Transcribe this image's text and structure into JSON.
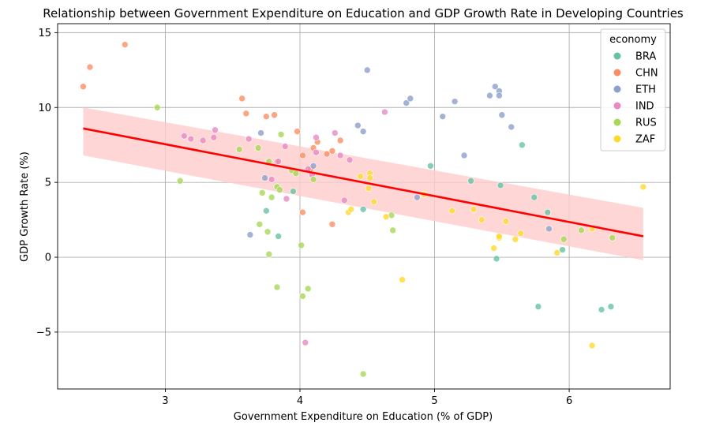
{
  "chart_data": {
    "type": "scatter",
    "title": "Relationship between Government Expenditure on Education and GDP Growth Rate in Developing Countries",
    "xlabel": "Government Expenditure on Education (% of GDP)",
    "ylabel": "GDP Growth Rate (%)",
    "xlim": [
      2.2,
      6.75
    ],
    "ylim": [
      -8.8,
      15.6
    ],
    "xticks": [
      3,
      4,
      5,
      6
    ],
    "yticks": [
      -5,
      0,
      5,
      10,
      15
    ],
    "grid": true,
    "legend": {
      "title": "economy",
      "position": "top-right"
    },
    "series": [
      {
        "name": "BRA",
        "color": "#66c2a5",
        "points": [
          [
            3.75,
            3.1
          ],
          [
            3.84,
            1.4
          ],
          [
            3.95,
            4.4
          ],
          [
            4.47,
            3.2
          ],
          [
            4.97,
            6.1
          ],
          [
            5.27,
            5.1
          ],
          [
            5.46,
            -0.1
          ],
          [
            5.49,
            4.8
          ],
          [
            5.65,
            7.5
          ],
          [
            5.74,
            4.0
          ],
          [
            5.77,
            -3.3
          ],
          [
            5.84,
            3.0
          ],
          [
            5.95,
            0.5
          ],
          [
            6.24,
            -3.5
          ],
          [
            6.31,
            -3.3
          ]
        ]
      },
      {
        "name": "CHN",
        "color": "#fc8d62",
        "points": [
          [
            2.39,
            11.4
          ],
          [
            2.44,
            12.7
          ],
          [
            2.7,
            14.2
          ],
          [
            3.57,
            10.6
          ],
          [
            3.6,
            9.6
          ],
          [
            3.75,
            9.4
          ],
          [
            3.81,
            9.5
          ],
          [
            3.83,
            6.4
          ],
          [
            3.98,
            8.4
          ],
          [
            4.02,
            6.8
          ],
          [
            4.02,
            3.0
          ],
          [
            4.08,
            5.9
          ],
          [
            4.1,
            7.3
          ],
          [
            4.13,
            7.7
          ],
          [
            4.2,
            6.9
          ],
          [
            4.24,
            7.1
          ],
          [
            4.24,
            2.2
          ],
          [
            4.3,
            7.8
          ]
        ]
      },
      {
        "name": "ETH",
        "color": "#8da0cb",
        "points": [
          [
            3.63,
            1.5
          ],
          [
            3.71,
            8.3
          ],
          [
            3.74,
            5.3
          ],
          [
            4.1,
            6.1
          ],
          [
            4.43,
            8.8
          ],
          [
            4.47,
            8.4
          ],
          [
            4.5,
            12.5
          ],
          [
            4.79,
            10.3
          ],
          [
            4.82,
            10.6
          ],
          [
            4.87,
            4.0
          ],
          [
            5.06,
            9.4
          ],
          [
            5.15,
            10.4
          ],
          [
            5.22,
            6.8
          ],
          [
            5.41,
            10.8
          ],
          [
            5.45,
            11.4
          ],
          [
            5.48,
            11.1
          ],
          [
            5.48,
            10.8
          ],
          [
            5.5,
            9.5
          ],
          [
            5.57,
            8.7
          ],
          [
            5.85,
            1.9
          ]
        ]
      },
      {
        "name": "IND",
        "color": "#e78ac3",
        "points": [
          [
            3.14,
            8.1
          ],
          [
            3.19,
            7.9
          ],
          [
            3.28,
            7.8
          ],
          [
            3.36,
            8.0
          ],
          [
            3.37,
            8.5
          ],
          [
            3.62,
            7.9
          ],
          [
            3.79,
            5.2
          ],
          [
            3.84,
            6.4
          ],
          [
            3.89,
            7.4
          ],
          [
            3.9,
            3.9
          ],
          [
            4.06,
            5.9
          ],
          [
            4.09,
            5.5
          ],
          [
            4.12,
            8.0
          ],
          [
            4.12,
            7.0
          ],
          [
            4.26,
            8.3
          ],
          [
            4.3,
            6.8
          ],
          [
            4.33,
            3.8
          ],
          [
            4.37,
            6.5
          ],
          [
            4.04,
            -5.7
          ],
          [
            4.63,
            9.7
          ]
        ]
      },
      {
        "name": "RUS",
        "color": "#a6d854",
        "points": [
          [
            2.94,
            10.0
          ],
          [
            3.11,
            5.1
          ],
          [
            3.55,
            7.2
          ],
          [
            3.69,
            7.3
          ],
          [
            3.7,
            2.2
          ],
          [
            3.72,
            4.3
          ],
          [
            3.76,
            1.7
          ],
          [
            3.77,
            6.4
          ],
          [
            3.77,
            0.2
          ],
          [
            3.79,
            4.0
          ],
          [
            3.83,
            4.7
          ],
          [
            3.85,
            4.5
          ],
          [
            3.86,
            8.2
          ],
          [
            3.94,
            5.8
          ],
          [
            3.97,
            5.6
          ],
          [
            4.01,
            0.8
          ],
          [
            4.02,
            -2.6
          ],
          [
            4.06,
            -2.1
          ],
          [
            3.83,
            -2.0
          ],
          [
            4.1,
            5.2
          ],
          [
            4.47,
            -7.8
          ],
          [
            4.68,
            2.8
          ],
          [
            4.69,
            1.8
          ],
          [
            5.96,
            1.2
          ],
          [
            6.09,
            1.8
          ],
          [
            6.32,
            1.3
          ]
        ]
      },
      {
        "name": "ZAF",
        "color": "#ffd92f",
        "points": [
          [
            4.36,
            3.0
          ],
          [
            4.38,
            3.2
          ],
          [
            4.45,
            5.4
          ],
          [
            4.51,
            4.6
          ],
          [
            4.52,
            5.6
          ],
          [
            4.52,
            5.3
          ],
          [
            4.55,
            3.7
          ],
          [
            4.64,
            2.7
          ],
          [
            4.76,
            -1.5
          ],
          [
            4.92,
            4.2
          ],
          [
            5.13,
            3.1
          ],
          [
            5.29,
            3.2
          ],
          [
            5.35,
            2.5
          ],
          [
            5.44,
            0.6
          ],
          [
            5.48,
            1.3
          ],
          [
            5.48,
            1.4
          ],
          [
            5.53,
            2.4
          ],
          [
            5.6,
            1.2
          ],
          [
            5.64,
            1.6
          ],
          [
            5.91,
            0.3
          ],
          [
            6.17,
            1.9
          ],
          [
            6.17,
            -5.9
          ],
          [
            6.55,
            4.7
          ]
        ]
      }
    ],
    "regression": {
      "color": "#ff0000",
      "band_color": "#ffcccc",
      "x": [
        2.39,
        6.55
      ],
      "y": [
        8.6,
        1.4
      ],
      "band_low": [
        6.8,
        -0.2
      ],
      "band_high": [
        10.0,
        3.3
      ]
    }
  }
}
